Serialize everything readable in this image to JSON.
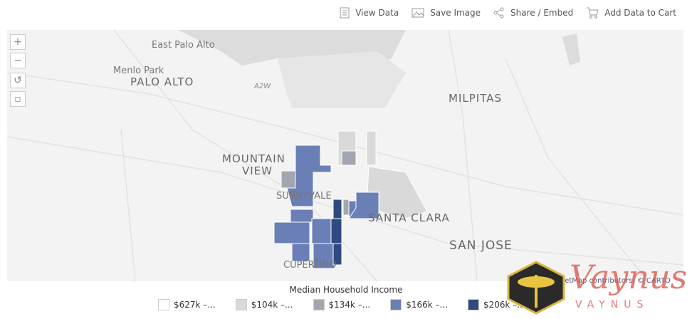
{
  "toolbar": [
    "View Data",
    "Save Image",
    "Share / Embed",
    "Add Data to Cart"
  ],
  "map": {
    "labels": [
      "East Palo Alto",
      "Menlo Park",
      "PALO ALTO",
      "A2W",
      "MILPITAS",
      "MOUNTAIN",
      "VIEW",
      "SUNNYVALE",
      "SANTA CLARA",
      "SAN JOSE",
      "CUPERTINO"
    ],
    "attribution": "© OpenStreetMap contributors, © CARTO"
  },
  "legend": {
    "title": "Median Household Income",
    "items": [
      {
        "label": "$627k –...",
        "color": "#ffffff"
      },
      {
        "label": "$104k –...",
        "color": "#d9d9d9"
      },
      {
        "label": "$134k –...",
        "color": "#a2a6b0"
      },
      {
        "label": "$166k –...",
        "color": "#6a7fb6"
      },
      {
        "label": "$206k –...",
        "color": "#2f4a80"
      }
    ]
  },
  "watermark": [
    "Vaynus",
    "VAYNUS"
  ]
}
